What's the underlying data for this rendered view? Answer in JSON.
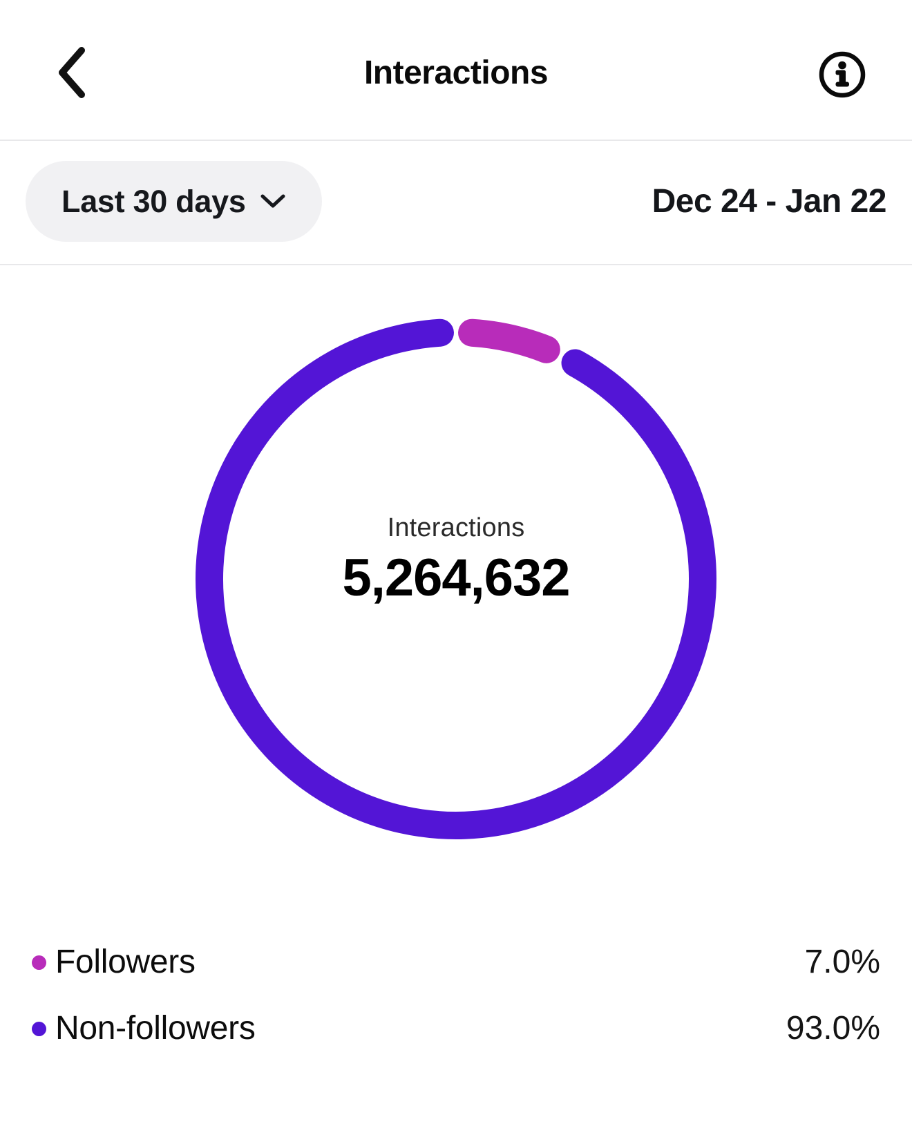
{
  "header": {
    "title": "Interactions"
  },
  "filter": {
    "period_label": "Last 30 days",
    "date_range": "Dec 24 - Jan 22"
  },
  "chart_data": {
    "type": "pie",
    "subtype": "donut",
    "title": "Interactions",
    "center_label": "Interactions",
    "center_value": "5,264,632",
    "segments": [
      {
        "label": "Followers",
        "value_pct": 7.0,
        "display_value": "7.0%",
        "color": "#b82cba"
      },
      {
        "label": "Non-followers",
        "value_pct": 93.0,
        "display_value": "93.0%",
        "color": "#5315d6"
      }
    ],
    "start_angle_deg": 0,
    "segment_gap_deg": 3.7,
    "legend_position": "bottom"
  },
  "colors": {
    "followers": "#b82cba",
    "non_followers": "#5315d6"
  }
}
